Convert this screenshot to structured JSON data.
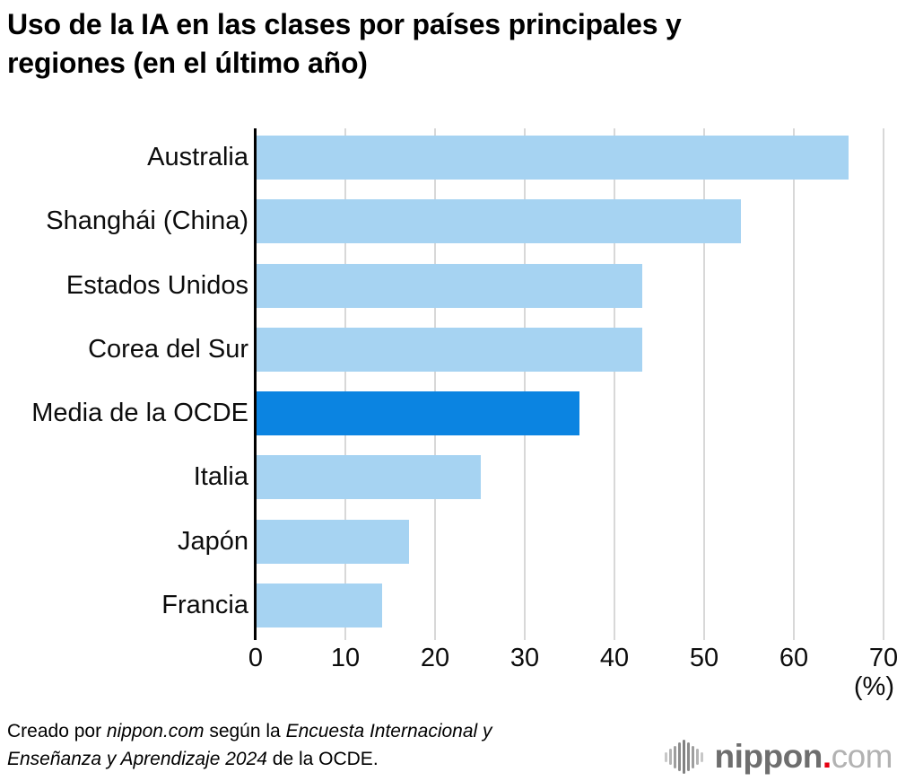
{
  "title": {
    "line1": "Uso de la IA en las clases por países principales y",
    "line2": "regiones (en el último año)",
    "full": "Uso de la IA en las clases por países principales y regiones (en el último año)"
  },
  "chart_data": {
    "type": "bar",
    "orientation": "horizontal",
    "title": "Uso de la IA en las clases por países principales y regiones (en el último año)",
    "categories": [
      "Australia",
      "Shanghái (China)",
      "Estados Unidos",
      "Corea del Sur",
      "Media de la OCDE",
      "Italia",
      "Japón",
      "Francia"
    ],
    "values": [
      66,
      54,
      43,
      43,
      36,
      25,
      17,
      14
    ],
    "unit": "%",
    "x_axis_label": "(%)",
    "xlim": [
      0,
      70
    ],
    "xticks": [
      0,
      10,
      20,
      30,
      40,
      50,
      60,
      70
    ],
    "grid": true,
    "legend": false,
    "bar_color": "#a6d3f2",
    "highlight_color": "#0b84e1",
    "highlight_index": 4,
    "highlight_category": "Media de la OCDE",
    "gridline_color": "#d8d8d8",
    "axis_color": "#000000"
  },
  "footer": {
    "line1": [
      {
        "text": "Creado por ",
        "italic": false
      },
      {
        "text": "nippon.com",
        "italic": true
      },
      {
        "text": " según la ",
        "italic": false
      },
      {
        "text": "Encuesta Internacional y",
        "italic": true
      }
    ],
    "line2": [
      {
        "text": "Enseñanza y Aprendizaje 2024",
        "italic": true
      },
      {
        "text": " de la OCDE.",
        "italic": false
      }
    ]
  },
  "logo": {
    "brand": "nippon",
    "dot": ".",
    "tld": "com"
  }
}
